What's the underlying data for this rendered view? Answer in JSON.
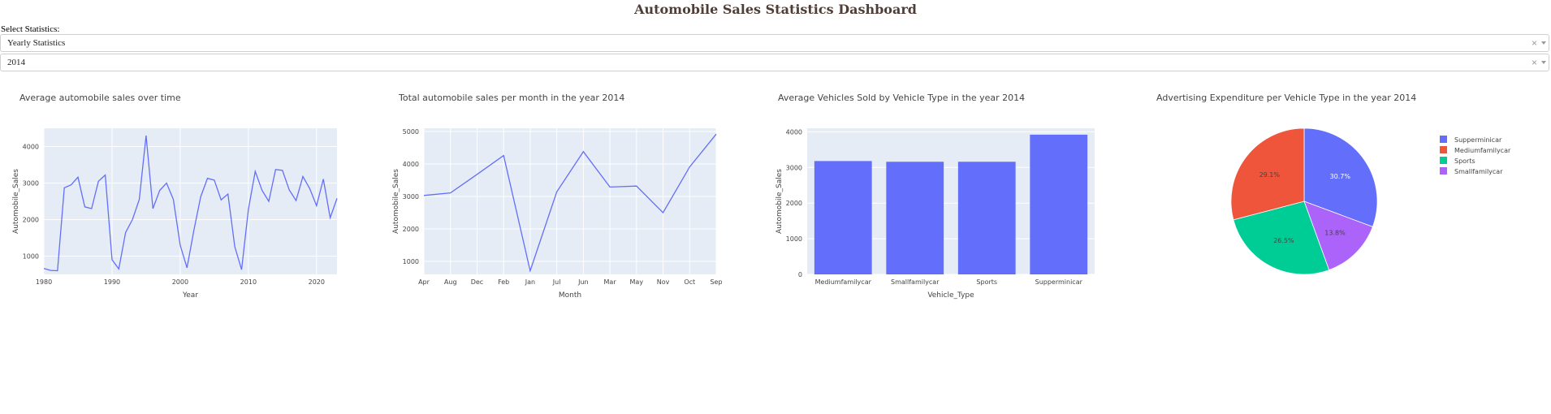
{
  "header": {
    "title": "Automobile Sales Statistics Dashboard"
  },
  "controls": {
    "select_label": "Select Statistics:",
    "statistics_dropdown": "Yearly Statistics",
    "year_dropdown": "2014",
    "clear_glyph": "×"
  },
  "chart_data": [
    {
      "type": "line",
      "title": "Average automobile sales over time",
      "xlabel": "Year",
      "ylabel": "Automobile_Sales",
      "xlim": [
        1980,
        2023
      ],
      "ylim": [
        500,
        4500
      ],
      "xticks": [
        1980,
        1990,
        2000,
        2010,
        2020
      ],
      "yticks": [
        1000,
        2000,
        3000,
        4000
      ],
      "x": [
        1980,
        1981,
        1982,
        1983,
        1984,
        1985,
        1986,
        1987,
        1988,
        1989,
        1990,
        1991,
        1992,
        1993,
        1994,
        1995,
        1996,
        1997,
        1998,
        1999,
        2000,
        2001,
        2002,
        2003,
        2004,
        2005,
        2006,
        2007,
        2008,
        2009,
        2010,
        2011,
        2012,
        2013,
        2014,
        2015,
        2016,
        2017,
        2018,
        2019,
        2020,
        2021,
        2022,
        2023
      ],
      "y": [
        660,
        610,
        600,
        2870,
        2950,
        3160,
        2350,
        2300,
        3050,
        3220,
        900,
        650,
        1650,
        2000,
        2550,
        4300,
        2300,
        2800,
        3000,
        2550,
        1300,
        680,
        1700,
        2620,
        3130,
        3080,
        2540,
        2700,
        1260,
        630,
        2280,
        3320,
        2800,
        2500,
        3370,
        3350,
        2810,
        2520,
        3180,
        2850,
        2380,
        3110,
        2050,
        2580
      ],
      "color": "#636EFA"
    },
    {
      "type": "line",
      "title": "Total automobile sales per month in the year 2014",
      "xlabel": "Month",
      "ylabel": "Automobile_Sales",
      "ylim": [
        600,
        5100
      ],
      "yticks": [
        1000,
        2000,
        3000,
        4000,
        5000
      ],
      "categories": [
        "Apr",
        "Aug",
        "Dec",
        "Feb",
        "Jan",
        "Jul",
        "Jun",
        "Mar",
        "May",
        "Nov",
        "Oct",
        "Sep"
      ],
      "values": [
        3030,
        3110,
        3680,
        4260,
        710,
        3140,
        4380,
        3290,
        3320,
        2500,
        3910,
        4920
      ],
      "color": "#636EFA"
    },
    {
      "type": "bar",
      "title": "Average Vehicles Sold by Vehicle Type in the year 2014",
      "xlabel": "Vehicle_Type",
      "ylabel": "Automobile_Sales",
      "ylim": [
        0,
        4100
      ],
      "yticks": [
        0,
        1000,
        2000,
        3000,
        4000
      ],
      "categories": [
        "Mediumfamilycar",
        "Smallfamilycar",
        "Sports",
        "Supperminicar"
      ],
      "values": [
        3180,
        3160,
        3160,
        3920
      ],
      "color": "#636EFA"
    },
    {
      "type": "pie",
      "title": "Advertising Expenditure per Vehicle Type in the year 2014",
      "legend_position": "right",
      "slices": [
        {
          "label": "Supperminicar",
          "value": 30.7,
          "text": "30.7%",
          "color": "#636EFA",
          "text_color": "#ffffff"
        },
        {
          "label": "Smallfamilycar",
          "value": 13.8,
          "text": "13.8%",
          "color": "#AB63FA",
          "text_color": "#444444"
        },
        {
          "label": "Sports",
          "value": 26.5,
          "text": "26.5%",
          "color": "#00CC96",
          "text_color": "#444444"
        },
        {
          "label": "Mediumfamilycar",
          "value": 29.1,
          "text": "29.1%",
          "color": "#EF553B",
          "text_color": "#444444"
        }
      ],
      "legend": [
        "Supperminicar",
        "Mediumfamilycar",
        "Sports",
        "Smallfamilycar"
      ]
    }
  ]
}
